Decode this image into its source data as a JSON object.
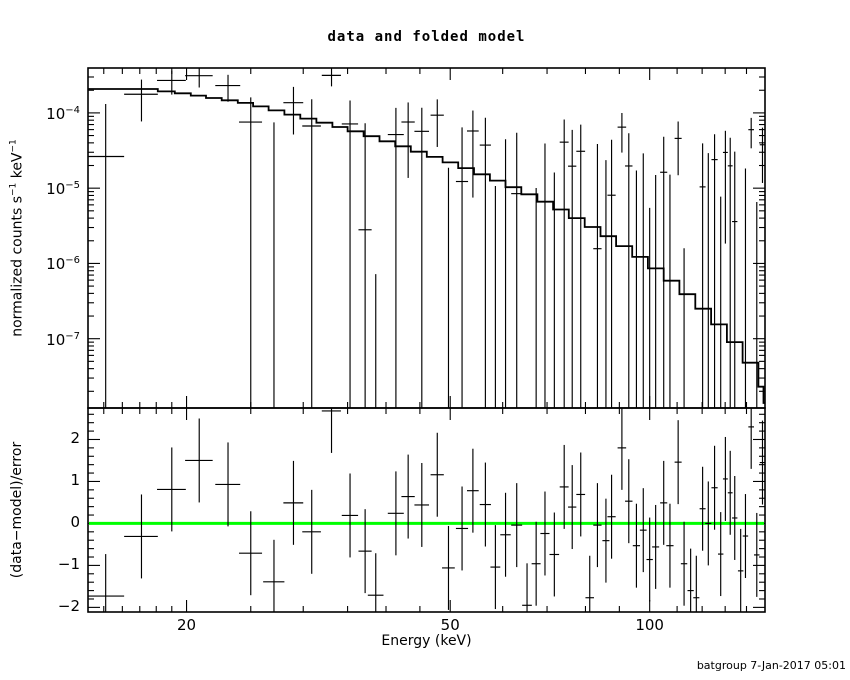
{
  "title": "data and folded model",
  "footer": "batgroup  7-Jan-2017 05:01",
  "axis_labels": {
    "x": "Energy (keV)",
    "y_top": {
      "prefix": "normalized counts s",
      "sup1": "−1",
      "mid": " keV",
      "sup2": "−1"
    },
    "y_bottom": "(data−model)/error"
  },
  "colors": {
    "foreground": "#000000",
    "background": "#ffffff",
    "zero_line": "#00ff00"
  },
  "chart_data": {
    "type": "scatter",
    "title": "data and folded model",
    "xlabel": "Energy (keV)",
    "xscale": "log",
    "xlim": [
      14.2,
      149.3
    ],
    "x_major_ticks": [
      20,
      50,
      100
    ],
    "x_minor_ticks": [
      15,
      16,
      17,
      18,
      19,
      25,
      30,
      35,
      40,
      45,
      60,
      70,
      80,
      90,
      110,
      120,
      130,
      140
    ],
    "panels": [
      {
        "name": "data-and-folded-model",
        "ylabel": "normalized counts s−1 keV−1",
        "yscale": "log",
        "ylim": [
          1.2e-08,
          0.000395
        ],
        "y_major_tick_exponents": [
          -4,
          -5,
          -6,
          -7
        ],
        "model_step_curve": {
          "energy": [
            14.2,
            18.1,
            19.2,
            20.3,
            21.4,
            22.6,
            23.9,
            25.2,
            26.6,
            28.1,
            29.7,
            31.4,
            33.2,
            35.0,
            37.0,
            39.1,
            41.3,
            43.6,
            46.1,
            48.7,
            51.4,
            54.3,
            57.4,
            60.6,
            64.0,
            67.7,
            71.5,
            75.5,
            79.8,
            84.3,
            89.0,
            94.1,
            99.4,
            105.0,
            110.9,
            117.2,
            123.8,
            130.8,
            138.1,
            145.9,
            148.5
          ],
          "value": [
            0.000208,
            0.000193,
            0.000182,
            0.00017,
            0.000158,
            0.000147,
            0.000136,
            0.000122,
            0.000108,
            9.5e-05,
            8.4e-05,
            7.4e-05,
            6.5e-05,
            5.7e-05,
            4.9e-05,
            4.2e-05,
            3.6e-05,
            3.05e-05,
            2.6e-05,
            2.2e-05,
            1.85e-05,
            1.53e-05,
            1.26e-05,
            1.03e-05,
            8.3e-06,
            6.6e-06,
            5.2e-06,
            4e-06,
            3.05e-06,
            2.3e-06,
            1.7e-06,
            1.22e-06,
            8.6e-07,
            5.9e-07,
            3.9e-07,
            2.5e-07,
            1.55e-07,
            9e-08,
            4.8e-08,
            2.3e-08,
            1.4e-08
          ]
        }
      },
      {
        "name": "residuals",
        "ylabel": "(data−model)/error",
        "yscale": "linear",
        "ylim": [
          -2.11,
          2.75
        ],
        "y_major_ticks": [
          2,
          1,
          0,
          -1,
          -2
        ],
        "y_minor_tick_step": 0.2,
        "zero_line_color": "#00ff00",
        "residual_error": 1.0
      }
    ],
    "bins": {
      "energy": [
        15.1,
        17.1,
        19.0,
        20.9,
        23.1,
        25.0,
        27.1,
        29.0,
        30.9,
        33.1,
        35.3,
        37.2,
        38.6,
        41.4,
        43.2,
        45.3,
        47.8,
        49.7,
        52.1,
        54.1,
        56.5,
        58.5,
        60.6,
        63.0,
        65.3,
        67.4,
        69.5,
        71.8,
        74.3,
        76.4,
        78.7,
        81.2,
        83.4,
        85.9,
        87.6,
        90.8,
        93.0,
        95.5,
        97.8,
        100.0,
        102.1,
        105.0,
        107.3,
        110.4,
        112.7,
        115.3,
        117.6,
        120.2,
        122.6,
        125.3,
        128.0,
        130.1,
        132.3,
        134.4,
        137.2,
        139.5,
        142.3,
        145.1,
        148.0
      ],
      "half_width": [
        1.0,
        1.0,
        0.95,
        1.0,
        1.0,
        1.0,
        1.0,
        1.0,
        1.0,
        1.1,
        1.0,
        0.85,
        1.05,
        1.15,
        1.0,
        1.15,
        1.1,
        1.1,
        1.1,
        1.1,
        1.1,
        1.0,
        1.1,
        1.2,
        1.1,
        1.05,
        1.1,
        1.2,
        1.15,
        1.1,
        1.2,
        1.2,
        1.2,
        1.05,
        1.25,
        1.35,
        1.2,
        1.2,
        1.15,
        1.1,
        1.25,
        1.3,
        1.35,
        1.35,
        1.25,
        1.25,
        1.25,
        1.25,
        1.3,
        1.35,
        1.2,
        1.1,
        1.1,
        1.25,
        1.3,
        1.3,
        1.4,
        1.4,
        1.4
      ],
      "residual": [
        -1.73,
        -0.31,
        0.81,
        1.5,
        0.93,
        -0.71,
        -1.39,
        0.49,
        -0.2,
        2.68,
        0.19,
        -0.66,
        -1.71,
        0.24,
        0.64,
        0.44,
        1.16,
        -1.06,
        -0.12,
        0.78,
        0.45,
        -1.04,
        -0.27,
        -0.04,
        -1.95,
        -0.96,
        -0.24,
        -0.74,
        0.87,
        0.39,
        0.69,
        -1.77,
        -0.04,
        -0.41,
        0.16,
        1.8,
        0.53,
        -0.53,
        -0.16,
        -0.86,
        -0.56,
        0.49,
        -0.53,
        1.46,
        -0.96,
        -1.6,
        -1.77,
        0.35,
        0.0,
        0.85,
        -0.73,
        1.06,
        0.73,
        0.13,
        -1.13,
        -0.3,
        2.3,
        -0.75,
        1.45
      ],
      "sigma": [
        0.000105,
        0.0001,
        9.5e-05,
        9.5e-05,
        9e-05,
        8.5e-05,
        8.5e-05,
        8.5e-05,
        8.5e-05,
        9e-05,
        7.5e-05,
        7e-05,
        6.8e-05,
        6.5e-05,
        6.2e-05,
        6e-05,
        5.8e-05,
        5.5e-05,
        5.2e-05,
        5e-05,
        4.9e-05,
        4.8e-05,
        4.7e-05,
        4.6e-05,
        4.5e-05,
        4.4e-05,
        4.3e-05,
        4.2e-05,
        4.1e-05,
        4e-05,
        3.9e-05,
        3.8e-05,
        3.7e-05,
        3.6e-05,
        3.6e-05,
        3.5e-05,
        3.4e-05,
        3.4e-05,
        3.3e-05,
        3.3e-05,
        3.2e-05,
        3.2e-05,
        3.1e-05,
        3.1e-05,
        3e-05,
        3e-05,
        2.9e-05,
        2.9e-05,
        2.9e-05,
        2.8e-05,
        2.8e-05,
        2.8e-05,
        2.7e-05,
        2.7e-05,
        2.7e-05,
        2.6e-05,
        2.6e-05,
        2.6e-05,
        2.6e-05
      ]
    },
    "notes": "data value per bin = model(step at bin energy) + residual * sigma; error bars are +/- sigma (top panel) and +/- 1 (residual panel)"
  }
}
